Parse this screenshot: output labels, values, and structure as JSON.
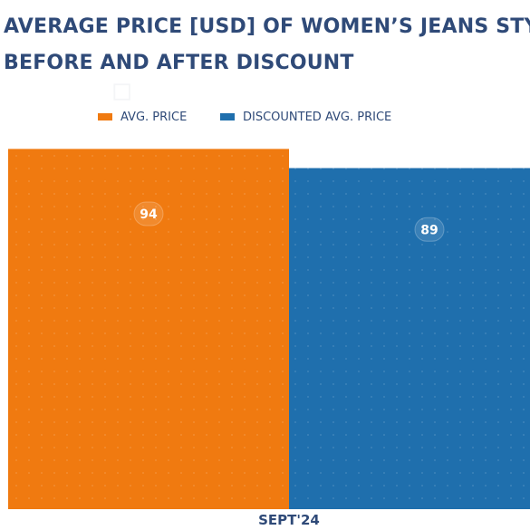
{
  "title_lines": [
    "AVERAGE PRICE [USD] OF WOMEN’S JEANS STYLES",
    "BEFORE AND AFTER DISCOUNT"
  ],
  "colors": {
    "title": "#2f4a78",
    "avg_price": "#f07a10",
    "discounted": "#1f6fad",
    "axis_text": "#2f4a78"
  },
  "chart_data": {
    "type": "bar",
    "categories": [
      "SEPT'24"
    ],
    "series": [
      {
        "name": "AVG. PRICE",
        "values": [
          94
        ]
      },
      {
        "name": "DISCOUNTED AVG. PRICE",
        "values": [
          89
        ]
      }
    ],
    "data_labels": true,
    "ylim": [
      0,
      100
    ],
    "grid": false,
    "legend": "top"
  }
}
